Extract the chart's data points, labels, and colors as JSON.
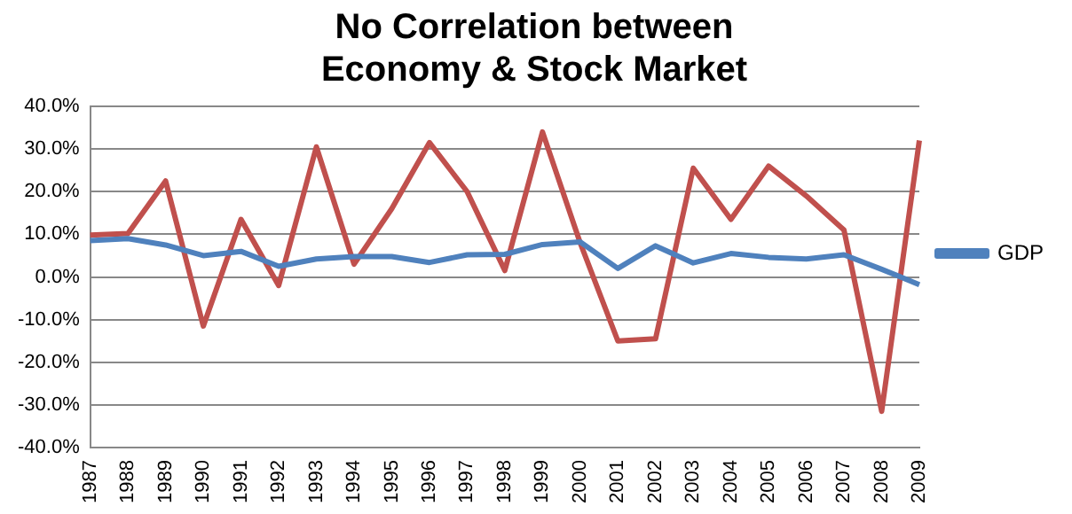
{
  "chart_data": {
    "type": "line",
    "title": "No Correlation between\nEconomy & Stock Market",
    "categories": [
      "1987",
      "1988",
      "1989",
      "1990",
      "1991",
      "1992",
      "1993",
      "1994",
      "1995",
      "1996",
      "1997",
      "1998",
      "1999",
      "2000",
      "2001",
      "2002",
      "2003",
      "2004",
      "2005",
      "2006",
      "2007",
      "2008",
      "2009"
    ],
    "series": [
      {
        "name": "GDP",
        "color": "#4f81bd",
        "values": [
          8.5,
          9,
          7.5,
          5,
          6,
          2.5,
          4.2,
          4.8,
          4.8,
          3.4,
          5.2,
          5.3,
          7.6,
          8.2,
          2,
          7.3,
          3.3,
          5.5,
          4.6,
          4.2,
          5.2,
          1.8,
          -1.8
        ]
      },
      {
        "color": "#c0504d",
        "values": [
          9.8,
          10.2,
          22.5,
          -11.5,
          13.5,
          -2,
          30.5,
          3,
          16,
          31.5,
          20,
          1.5,
          34,
          8,
          -15,
          -14.5,
          25.5,
          13.5,
          26,
          19,
          11,
          -31.5,
          32
        ]
      }
    ],
    "ylim": [
      -40,
      40
    ],
    "yticks": [
      {
        "value": -40,
        "label": "-40.0%"
      },
      {
        "value": -30,
        "label": "-30.0%"
      },
      {
        "value": -20,
        "label": "-20.0%"
      },
      {
        "value": -10,
        "label": "-10.0%"
      },
      {
        "value": 0,
        "label": "0.0%"
      },
      {
        "value": 10,
        "label": "10.0%"
      },
      {
        "value": 20,
        "label": "20.0%"
      },
      {
        "value": 30,
        "label": "30.0%"
      },
      {
        "value": 40,
        "label": "40.0%"
      }
    ],
    "grid": "y",
    "legend": "right",
    "marker": "none",
    "line_style": "solid"
  }
}
